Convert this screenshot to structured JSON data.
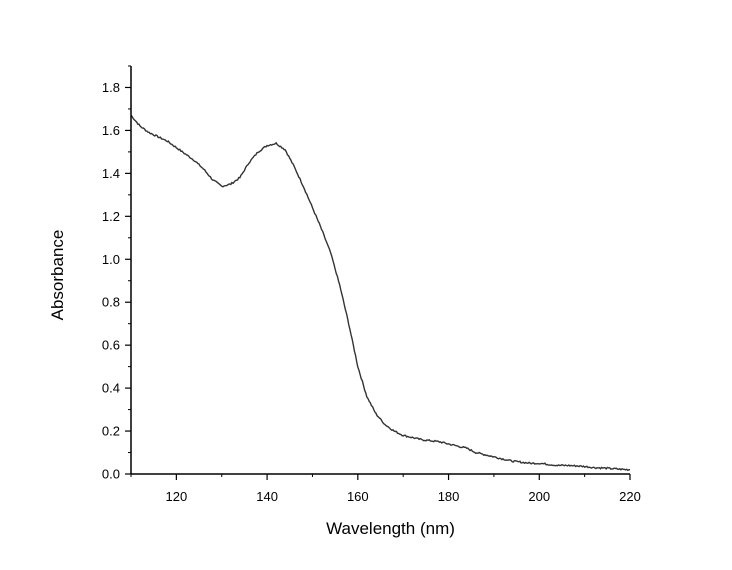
{
  "chart_data": {
    "type": "line",
    "title": "",
    "xlabel": "Wavelength (nm)",
    "ylabel": "Absorbance",
    "xlim": [
      110,
      220
    ],
    "ylim": [
      0.0,
      1.9
    ],
    "x_ticks": [
      120,
      140,
      160,
      180,
      200,
      220
    ],
    "x_tick_labels": [
      "120",
      "140",
      "160",
      "180",
      "200",
      "220"
    ],
    "y_ticks": [
      0.0,
      0.2,
      0.4,
      0.6,
      0.8,
      1.0,
      1.2,
      1.4,
      1.6,
      1.8
    ],
    "y_tick_labels": [
      "0.0",
      "0.2",
      "0.4",
      "0.6",
      "0.8",
      "1.0",
      "1.2",
      "1.4",
      "1.6",
      "1.8"
    ],
    "grid": false,
    "legend": "none",
    "line_color": "#333333",
    "series": [
      {
        "x": [
          110,
          112,
          114,
          116,
          118,
          120,
          122,
          124,
          126,
          128,
          130,
          132,
          134,
          136,
          138,
          140,
          142,
          144,
          146,
          148,
          150,
          152,
          154,
          156,
          158,
          160,
          162,
          164,
          166,
          168,
          170,
          172,
          174,
          176,
          178,
          180,
          182,
          184,
          186,
          188,
          190,
          192,
          194,
          196,
          198,
          200,
          202,
          204,
          206,
          208,
          210,
          212,
          214,
          216,
          218,
          220
        ],
        "y": [
          1.67,
          1.62,
          1.59,
          1.57,
          1.55,
          1.52,
          1.49,
          1.46,
          1.42,
          1.37,
          1.34,
          1.35,
          1.38,
          1.45,
          1.5,
          1.53,
          1.54,
          1.51,
          1.43,
          1.34,
          1.24,
          1.14,
          1.03,
          0.88,
          0.7,
          0.5,
          0.36,
          0.28,
          0.23,
          0.2,
          0.18,
          0.17,
          0.16,
          0.155,
          0.15,
          0.14,
          0.13,
          0.12,
          0.1,
          0.09,
          0.08,
          0.07,
          0.06,
          0.055,
          0.05,
          0.05,
          0.045,
          0.04,
          0.04,
          0.038,
          0.035,
          0.03,
          0.028,
          0.025,
          0.022,
          0.02
        ]
      }
    ]
  }
}
